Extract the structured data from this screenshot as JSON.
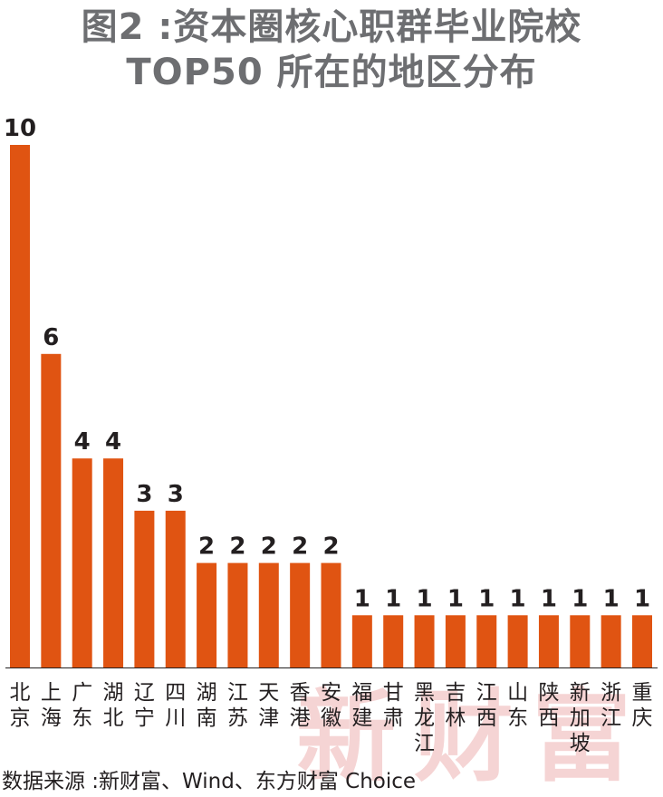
{
  "title": {
    "line1": "图2 :资本圈核心职群毕业院校",
    "line2": "TOP50 所在的地区分布"
  },
  "watermark": "新财富",
  "source": "数据来源 :新财富、Wind、东方财富 Choice",
  "colors": {
    "bar": "#e05412",
    "title": "#6d6e71",
    "text": "#231f20",
    "watermark": "#f2c6c6"
  },
  "chart_data": {
    "type": "bar",
    "categories": [
      "北京",
      "上海",
      "广东",
      "湖北",
      "辽宁",
      "四川",
      "湖南",
      "江苏",
      "天津",
      "香港",
      "安徽",
      "福建",
      "甘肃",
      "黑龙江",
      "吉林",
      "江西",
      "山东",
      "陕西",
      "新加坡",
      "浙江",
      "重庆"
    ],
    "values": [
      10,
      6,
      4,
      4,
      3,
      3,
      2,
      2,
      2,
      2,
      2,
      1,
      1,
      1,
      1,
      1,
      1,
      1,
      1,
      1,
      1
    ],
    "title": "图2 :资本圈核心职群毕业院校 TOP50 所在的地区分布",
    "xlabel": "",
    "ylabel": "",
    "ylim": [
      0,
      10
    ],
    "grid": false,
    "legend": "none"
  }
}
